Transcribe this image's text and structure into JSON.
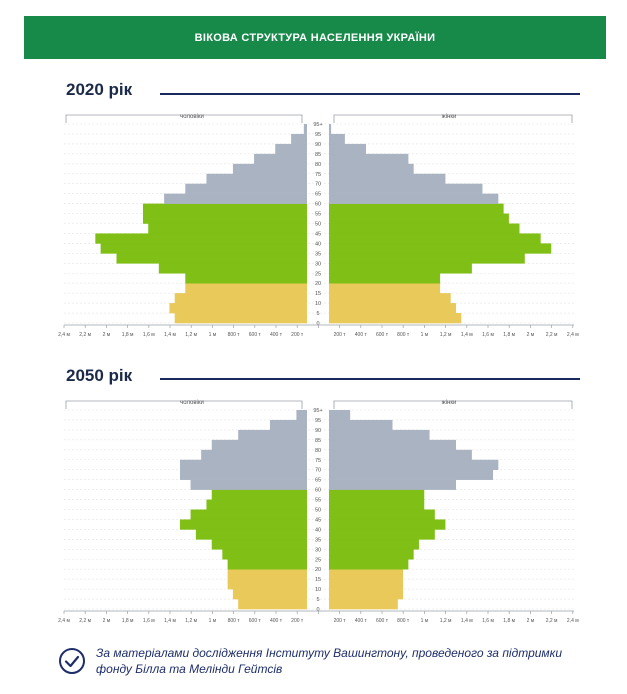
{
  "banner": {
    "title": "ВІКОВА СТРУКТУРА НАСЕЛЕННЯ УКРАЇНИ"
  },
  "colors": {
    "banner": "#178a4a",
    "child": "#e8c95a",
    "working": "#7fbf16",
    "elderly": "#a9b3c1",
    "title_rule": "#1a2a5c",
    "footer_text": "#1e2e6a"
  },
  "chart_data": [
    {
      "type": "bar",
      "title": "2020 рік",
      "left_label": "чоловіки",
      "right_label": "жінки",
      "categories": [
        "0",
        "5",
        "10",
        "15",
        "20",
        "25",
        "30",
        "35",
        "40",
        "45",
        "50",
        "55",
        "60",
        "65",
        "70",
        "75",
        "80",
        "85",
        "90",
        "95+"
      ],
      "age_tick_labels": [
        "0",
        "5",
        "10",
        "15",
        "20",
        "25",
        "30",
        "35",
        "40",
        "45",
        "50",
        "55",
        "60",
        "65",
        "70",
        "75",
        "80",
        "85",
        "90",
        "95",
        "95+"
      ],
      "x_tick_labels": [
        "2,4 м",
        "2,2 м",
        "2 м",
        "1,8 м",
        "1,6 м",
        "1,4 м",
        "1,2 м",
        "1 м",
        "800 т",
        "600 т",
        "400 т",
        "200 т",
        "",
        "200 т",
        "400 т",
        "600 т",
        "800 т",
        "1 м",
        "1,2 м",
        "1,4 м",
        "1,6 м",
        "1,8 м",
        "2 м",
        "2,2 м",
        "2,4 м"
      ],
      "xlim": [
        0,
        2400000
      ],
      "series": [
        {
          "name": "чоловіки",
          "values": [
            1250000,
            1300000,
            1250000,
            1150000,
            1150000,
            1400000,
            1800000,
            1950000,
            2000000,
            1500000,
            1550000,
            1550000,
            1350000,
            1150000,
            950000,
            700000,
            500000,
            300000,
            150000,
            30000
          ]
        },
        {
          "name": "жінки",
          "values": [
            1250000,
            1200000,
            1150000,
            1050000,
            1050000,
            1350000,
            1850000,
            2100000,
            2000000,
            1800000,
            1700000,
            1650000,
            1600000,
            1450000,
            1100000,
            800000,
            750000,
            350000,
            150000,
            20000
          ]
        }
      ],
      "age_group_colors": [
        "child",
        "child",
        "child",
        "child",
        "working",
        "working",
        "working",
        "working",
        "working",
        "working",
        "working",
        "working",
        "elderly",
        "elderly",
        "elderly",
        "elderly",
        "elderly",
        "elderly",
        "elderly",
        "elderly"
      ]
    },
    {
      "type": "bar",
      "title": "2050 рік",
      "left_label": "чоловіки",
      "right_label": "жінки",
      "categories": [
        "0",
        "5",
        "10",
        "15",
        "20",
        "25",
        "30",
        "35",
        "40",
        "45",
        "50",
        "55",
        "60",
        "65",
        "70",
        "75",
        "80",
        "85",
        "90",
        "95+"
      ],
      "age_tick_labels": [
        "0",
        "5",
        "10",
        "15",
        "20",
        "25",
        "30",
        "35",
        "40",
        "45",
        "50",
        "55",
        "60",
        "65",
        "70",
        "75",
        "80",
        "85",
        "90",
        "95",
        "95+"
      ],
      "x_tick_labels": [
        "2,4 м",
        "2,2 м",
        "2 м",
        "1,8 м",
        "1,6 м",
        "1,4 м",
        "1,2 м",
        "1 м",
        "800 т",
        "600 т",
        "400 т",
        "200 т",
        "",
        "200 т",
        "400 т",
        "600 т",
        "800 т",
        "1 м",
        "1,2 м",
        "1,4 м",
        "1,6 м",
        "1,8 м",
        "2 м",
        "2,2 м",
        "2,4 м"
      ],
      "xlim": [
        0,
        2400000
      ],
      "series": [
        {
          "name": "чоловіки",
          "values": [
            650000,
            700000,
            750000,
            750000,
            750000,
            800000,
            900000,
            1050000,
            1200000,
            1100000,
            950000,
            900000,
            1100000,
            1200000,
            1200000,
            1000000,
            900000,
            650000,
            350000,
            100000
          ]
        },
        {
          "name": "жінки",
          "values": [
            650000,
            700000,
            700000,
            700000,
            750000,
            800000,
            850000,
            1000000,
            1100000,
            1000000,
            900000,
            900000,
            1200000,
            1550000,
            1600000,
            1350000,
            1200000,
            950000,
            600000,
            200000
          ]
        }
      ],
      "age_group_colors": [
        "child",
        "child",
        "child",
        "child",
        "working",
        "working",
        "working",
        "working",
        "working",
        "working",
        "working",
        "working",
        "elderly",
        "elderly",
        "elderly",
        "elderly",
        "elderly",
        "elderly",
        "elderly",
        "elderly"
      ]
    }
  ],
  "footer": {
    "icon": "check-circle-icon",
    "line1": "За матеріалами дослідження Інституту Вашингтону, проведеного за підтримки",
    "line2": "фонду Білла та Мелінди Гейтсів"
  }
}
